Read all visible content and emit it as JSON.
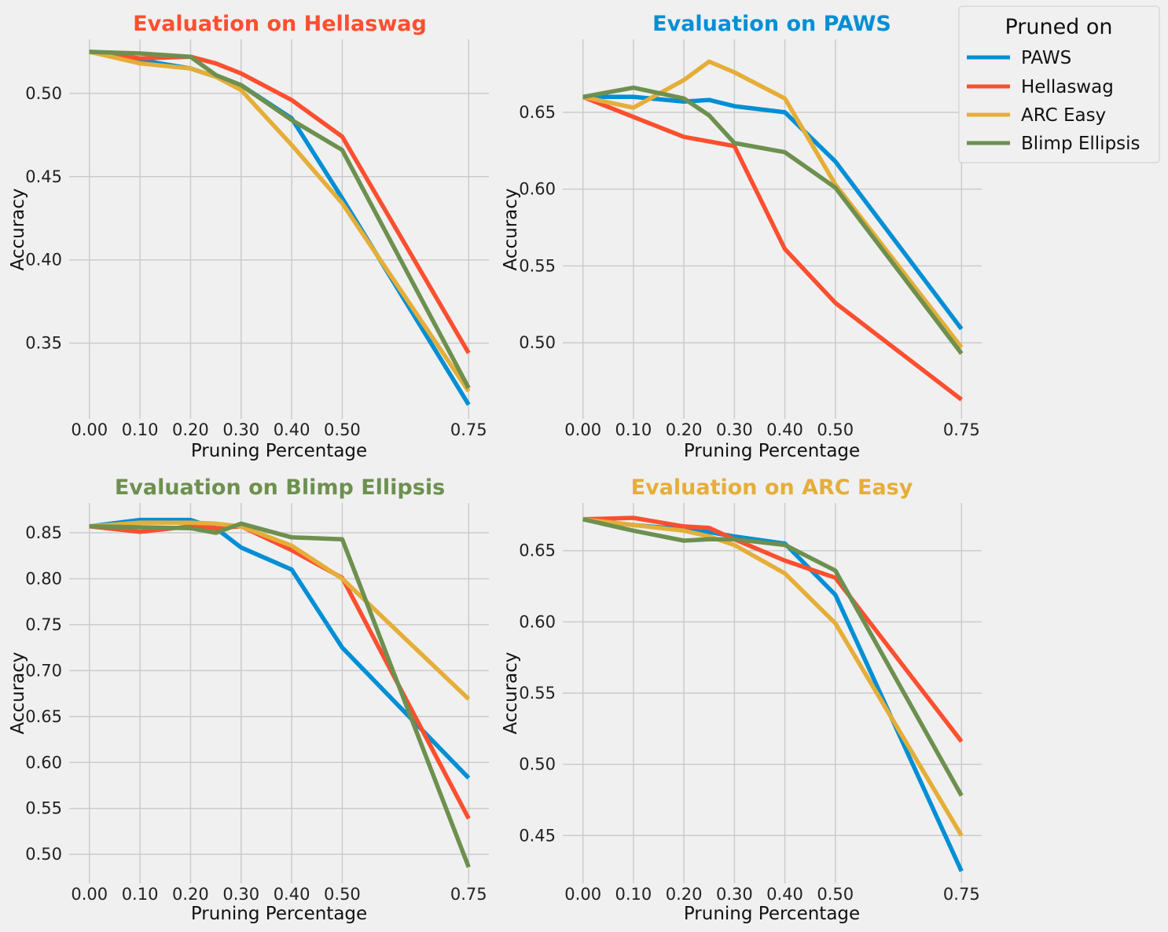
{
  "legend": {
    "title": "Pruned on",
    "entries": [
      {
        "name": "PAWS",
        "color": "#008fd5"
      },
      {
        "name": "Hellaswag",
        "color": "#fc4f30"
      },
      {
        "name": "ARC Easy",
        "color": "#e5ae38"
      },
      {
        "name": "Blimp Ellipsis",
        "color": "#6d904f"
      }
    ],
    "placement": "outside top-right"
  },
  "chart_data": [
    {
      "type": "line",
      "title": "Evaluation on Hellaswag",
      "title_color": "#fc4f30",
      "xlabel": "Pruning Percentage",
      "ylabel": "Accuracy",
      "xlim": [
        -0.04,
        0.79
      ],
      "ylim": [
        0.3045,
        0.5325
      ],
      "xticks": [
        0,
        0.1,
        0.2,
        0.3,
        0.4,
        0.5,
        0.75
      ],
      "xtick_labels": [
        "0.00",
        "0.10",
        "0.20",
        "0.30",
        "0.40",
        "0.50",
        "0.75"
      ],
      "yticks": [
        0.35,
        0.4,
        0.45,
        0.5
      ],
      "ytick_labels": [
        "0.35",
        "0.40",
        "0.45",
        "0.50"
      ],
      "grid": true,
      "x": [
        0,
        0.1,
        0.2,
        0.25,
        0.3,
        0.4,
        0.5,
        0.75
      ],
      "series": [
        {
          "name": "PAWS",
          "color": "#008fd5",
          "values": [
            0.525,
            0.52,
            0.515,
            0.51,
            0.505,
            0.485,
            0.437,
            0.313
          ]
        },
        {
          "name": "Hellaswag",
          "color": "#fc4f30",
          "values": [
            0.525,
            0.521,
            0.522,
            0.518,
            0.512,
            0.496,
            0.474,
            0.344
          ]
        },
        {
          "name": "ARC Easy",
          "color": "#e5ae38",
          "values": [
            0.525,
            0.518,
            0.515,
            0.51,
            0.502,
            0.469,
            0.434,
            0.321
          ]
        },
        {
          "name": "Blimp Ellipsis",
          "color": "#6d904f",
          "values": [
            0.525,
            0.524,
            0.522,
            0.511,
            0.505,
            0.484,
            0.466,
            0.323
          ]
        }
      ]
    },
    {
      "type": "line",
      "title": "Evaluation on PAWS",
      "title_color": "#008fd5",
      "xlabel": "Pruning Percentage",
      "ylabel": "Accuracy",
      "xlim": [
        -0.04,
        0.79
      ],
      "ylim": [
        0.4505,
        0.6975
      ],
      "xticks": [
        0,
        0.1,
        0.2,
        0.3,
        0.4,
        0.5,
        0.75
      ],
      "xtick_labels": [
        "0.00",
        "0.10",
        "0.20",
        "0.30",
        "0.40",
        "0.50",
        "0.75"
      ],
      "yticks": [
        0.5,
        0.55,
        0.6,
        0.65
      ],
      "ytick_labels": [
        "0.50",
        "0.55",
        "0.60",
        "0.65"
      ],
      "grid": true,
      "x": [
        0,
        0.1,
        0.2,
        0.25,
        0.3,
        0.4,
        0.5,
        0.75
      ],
      "series": [
        {
          "name": "PAWS",
          "color": "#008fd5",
          "values": [
            0.66,
            0.66,
            0.657,
            0.658,
            0.654,
            0.65,
            0.618,
            0.509
          ]
        },
        {
          "name": "Hellaswag",
          "color": "#fc4f30",
          "values": [
            0.66,
            0.647,
            0.634,
            0.631,
            0.628,
            0.561,
            0.526,
            0.463
          ]
        },
        {
          "name": "ARC Easy",
          "color": "#e5ae38",
          "values": [
            0.66,
            0.653,
            0.671,
            0.683,
            0.676,
            0.659,
            0.603,
            0.497
          ]
        },
        {
          "name": "Blimp Ellipsis",
          "color": "#6d904f",
          "values": [
            0.66,
            0.666,
            0.659,
            0.648,
            0.63,
            0.624,
            0.601,
            0.493
          ]
        }
      ]
    },
    {
      "type": "line",
      "title": "Evaluation on Blimp Ellipsis",
      "title_color": "#6d904f",
      "xlabel": "Pruning Percentage",
      "ylabel": "Accuracy",
      "xlim": [
        -0.04,
        0.79
      ],
      "ylim": [
        0.4685,
        0.8825
      ],
      "xticks": [
        0,
        0.1,
        0.2,
        0.3,
        0.4,
        0.5,
        0.75
      ],
      "xtick_labels": [
        "0.00",
        "0.10",
        "0.20",
        "0.30",
        "0.40",
        "0.50",
        "0.75"
      ],
      "yticks": [
        0.5,
        0.55,
        0.6,
        0.65,
        0.7,
        0.75,
        0.8,
        0.85
      ],
      "ytick_labels": [
        "0.50",
        "0.55",
        "0.60",
        "0.65",
        "0.70",
        "0.75",
        "0.80",
        "0.85"
      ],
      "grid": true,
      "x": [
        0,
        0.1,
        0.2,
        0.25,
        0.3,
        0.4,
        0.5,
        0.75
      ],
      "series": [
        {
          "name": "PAWS",
          "color": "#008fd5",
          "values": [
            0.857,
            0.864,
            0.864,
            0.855,
            0.834,
            0.81,
            0.725,
            0.583
          ]
        },
        {
          "name": "Hellaswag",
          "color": "#fc4f30",
          "values": [
            0.857,
            0.851,
            0.857,
            0.855,
            0.857,
            0.831,
            0.801,
            0.539
          ]
        },
        {
          "name": "ARC Easy",
          "color": "#e5ae38",
          "values": [
            0.857,
            0.861,
            0.861,
            0.86,
            0.857,
            0.836,
            0.8,
            0.669
          ]
        },
        {
          "name": "Blimp Ellipsis",
          "color": "#6d904f",
          "values": [
            0.857,
            0.856,
            0.855,
            0.85,
            0.86,
            0.845,
            0.843,
            0.486
          ]
        }
      ]
    },
    {
      "type": "line",
      "title": "Evaluation on ARC Easy",
      "title_color": "#e5ae38",
      "xlabel": "Pruning Percentage",
      "ylabel": "Accuracy",
      "xlim": [
        -0.04,
        0.79
      ],
      "ylim": [
        0.4165,
        0.6835
      ],
      "xticks": [
        0,
        0.1,
        0.2,
        0.3,
        0.4,
        0.5,
        0.75
      ],
      "xtick_labels": [
        "0.00",
        "0.10",
        "0.20",
        "0.30",
        "0.40",
        "0.50",
        "0.75"
      ],
      "yticks": [
        0.45,
        0.5,
        0.55,
        0.6,
        0.65
      ],
      "ytick_labels": [
        "0.45",
        "0.50",
        "0.55",
        "0.60",
        "0.65"
      ],
      "grid": true,
      "x": [
        0,
        0.1,
        0.2,
        0.25,
        0.3,
        0.4,
        0.5,
        0.75
      ],
      "series": [
        {
          "name": "PAWS",
          "color": "#008fd5",
          "values": [
            0.672,
            0.668,
            0.665,
            0.663,
            0.66,
            0.655,
            0.619,
            0.425
          ]
        },
        {
          "name": "Hellaswag",
          "color": "#fc4f30",
          "values": [
            0.672,
            0.673,
            0.667,
            0.666,
            0.658,
            0.643,
            0.631,
            0.516
          ]
        },
        {
          "name": "ARC Easy",
          "color": "#e5ae38",
          "values": [
            0.672,
            0.668,
            0.664,
            0.66,
            0.654,
            0.634,
            0.599,
            0.45
          ]
        },
        {
          "name": "Blimp Ellipsis",
          "color": "#6d904f",
          "values": [
            0.672,
            0.664,
            0.657,
            0.658,
            0.658,
            0.654,
            0.636,
            0.478
          ]
        }
      ]
    }
  ]
}
